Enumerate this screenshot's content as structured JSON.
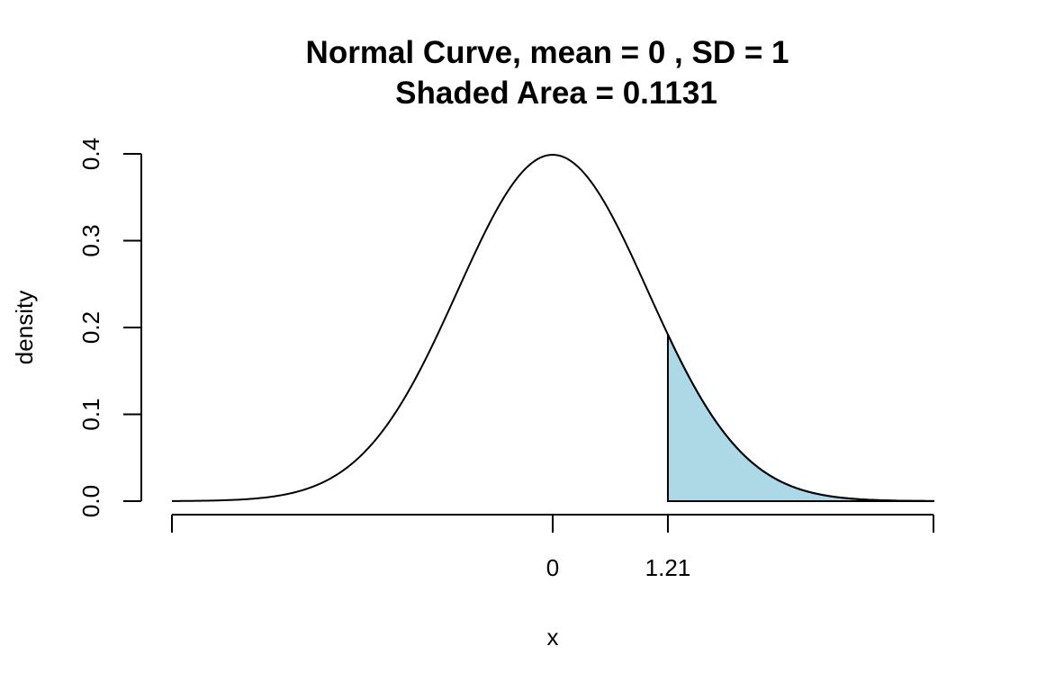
{
  "chart_data": {
    "type": "area",
    "title": "Normal Curve, mean =  0 , SD =  1",
    "subtitle": "Shaded Area =  0.1131",
    "xlabel": "x",
    "ylabel": "density",
    "mean": 0,
    "sd": 1,
    "shaded_area": 0.1131,
    "shade_from": 1.21,
    "shade_to": 4,
    "xlim": [
      -4,
      4
    ],
    "ylim": [
      0,
      0.4
    ],
    "x_ticks": [
      -4,
      0,
      1.21,
      4
    ],
    "x_tick_labels": [
      "",
      "0",
      "1.21",
      ""
    ],
    "y_ticks": [
      0.0,
      0.1,
      0.2,
      0.3,
      0.4
    ],
    "y_tick_labels": [
      "0.0",
      "0.1",
      "0.2",
      "0.3",
      "0.4"
    ],
    "grid": false,
    "colors": {
      "curve": "#000000",
      "shade": "#add8e6"
    }
  }
}
